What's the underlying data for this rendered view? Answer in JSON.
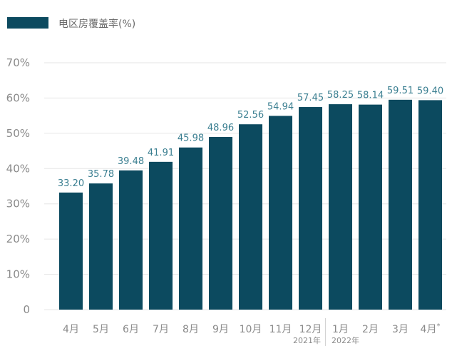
{
  "chart_data": {
    "type": "bar",
    "categories": [
      "4月",
      "5月",
      "6月",
      "7月",
      "8月",
      "9月",
      "10月",
      "11月",
      "12月",
      "1月",
      "2月",
      "3月",
      "4月*"
    ],
    "series": [
      {
        "name": "电区房覆盖率(%)",
        "values": [
          33.2,
          35.78,
          39.48,
          41.91,
          45.98,
          48.96,
          52.56,
          54.94,
          57.45,
          58.25,
          58.14,
          59.51,
          59.4
        ]
      }
    ],
    "y_tick_labels": [
      "0",
      "10%",
      "20%",
      "30%",
      "40%",
      "50%",
      "60%",
      "70%"
    ],
    "ylim": [
      0,
      70
    ],
    "year_markers": [
      {
        "category_index": 8,
        "label": "2021年"
      },
      {
        "category_index": 9,
        "label": "2022年"
      }
    ],
    "grid": true,
    "data_labels": true,
    "legend_position": "top-left"
  },
  "colors": {
    "bar": "#0c4a5f",
    "value_label": "#3b7f91",
    "tick_label": "#8a8a8a",
    "legend_text": "#6b6b6b",
    "gridline": "#e6e6e6",
    "divider": "#d4d4d4"
  }
}
